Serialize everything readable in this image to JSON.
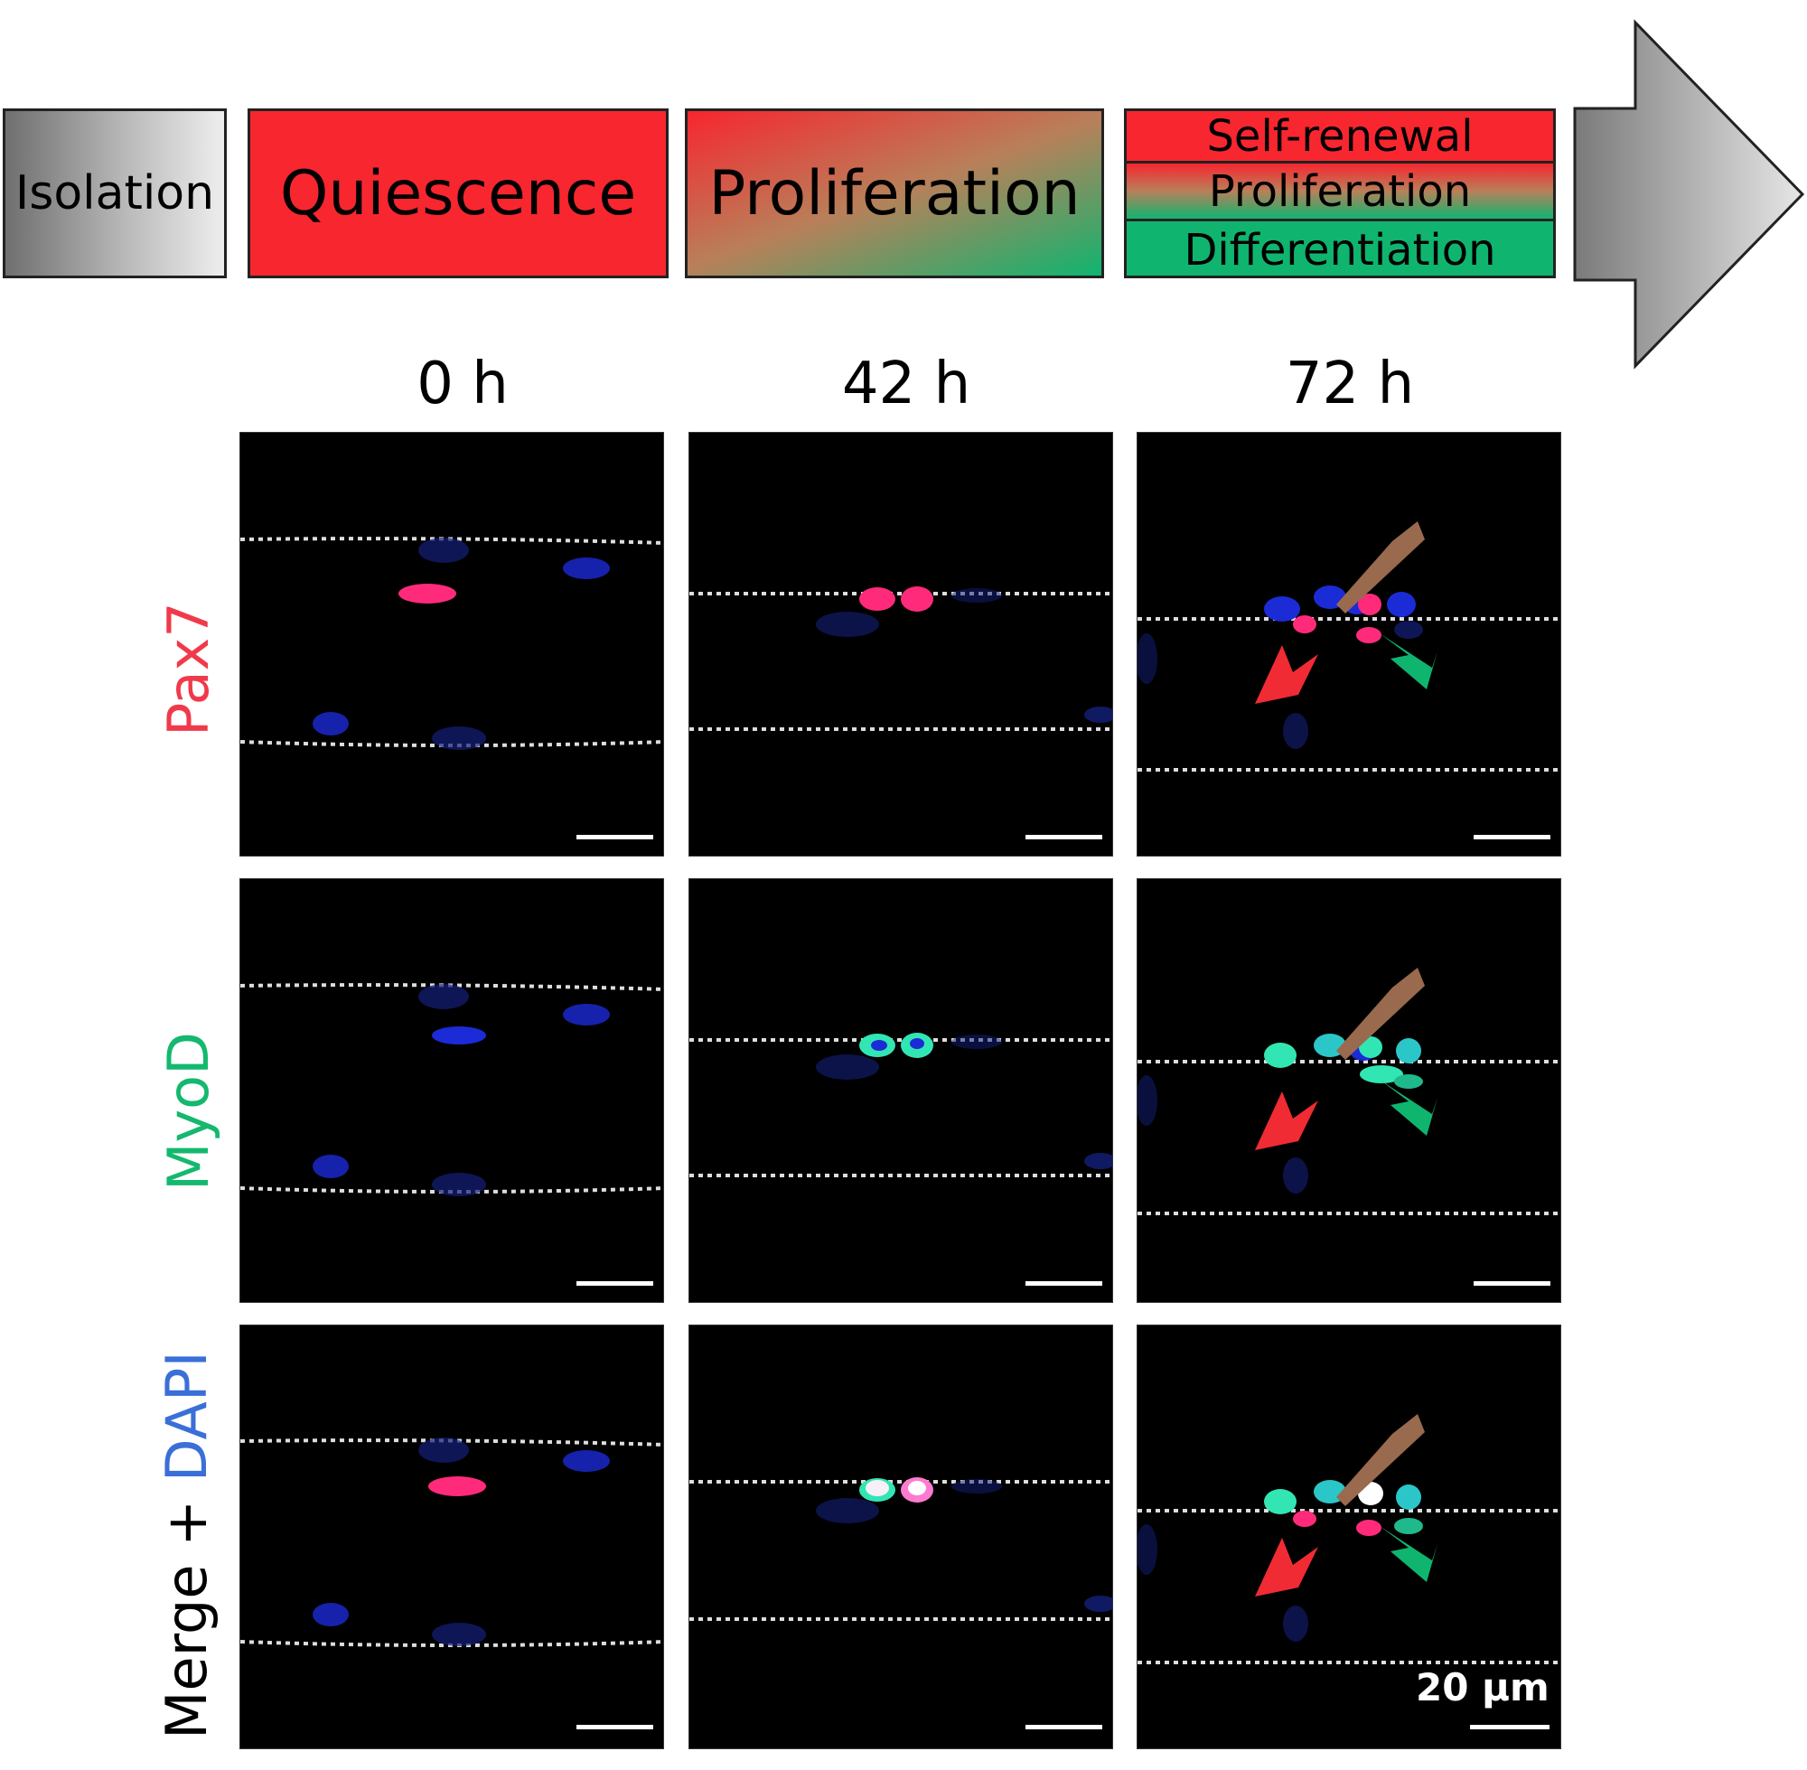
{
  "stages": {
    "isolation": "Isolation",
    "quiescence": "Quiescence",
    "proliferation": "Proliferation",
    "fates": [
      "Self-renewal",
      "Proliferation",
      "Differentiation"
    ]
  },
  "timepoints": [
    "0 h",
    "42 h",
    "72 h"
  ],
  "rows": [
    {
      "label": "Pax7",
      "color": "#f03a4a"
    },
    {
      "label": "MyoD",
      "color": "#14b86e"
    },
    {
      "label_parts": [
        "Merge + ",
        "DAPI"
      ],
      "colors": [
        "#000000",
        "#3a6fd8"
      ]
    }
  ],
  "scale_bar": "20 µm",
  "colors": {
    "red": "#f7262f",
    "green": "#0fb56f",
    "arrow_grey_dark": "#7a7a7a",
    "arrow_grey_light": "#e0e0e0",
    "nucleus_blue": "#1b2bd6",
    "pax7_red": "#ff2a7a",
    "myod_green": "#32e6b4"
  }
}
